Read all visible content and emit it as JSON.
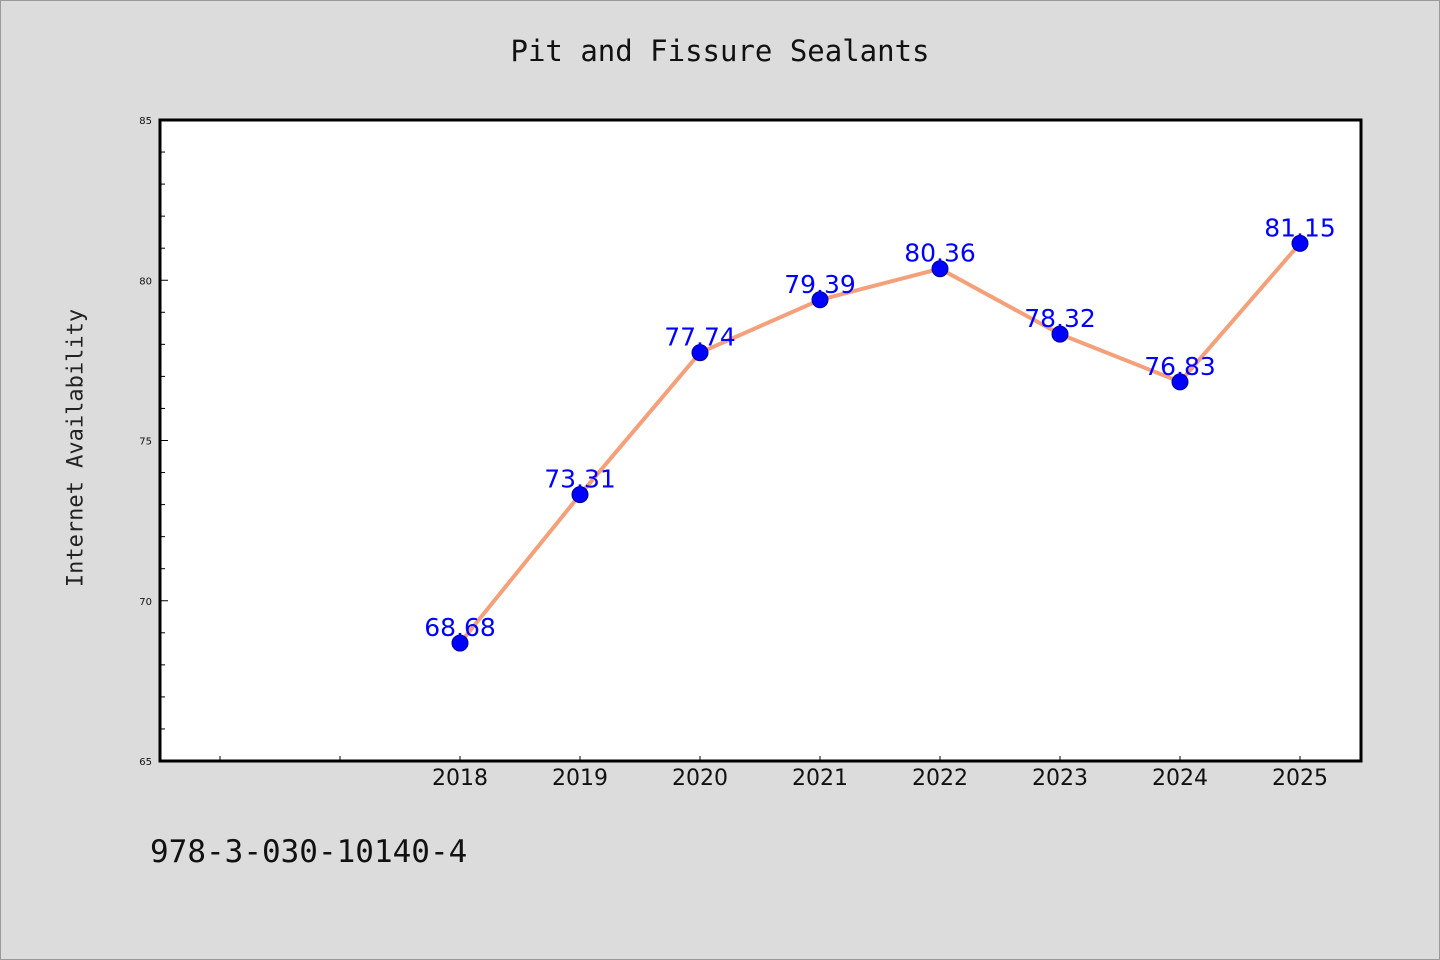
{
  "chart_data": {
    "type": "line",
    "title": "Pit and Fissure Sealants",
    "xlabel": "",
    "ylabel": "Internet Availability",
    "x": [
      "2018",
      "2019",
      "2020",
      "2021",
      "2022",
      "2023",
      "2024",
      "2025"
    ],
    "series": [
      {
        "values": [
          68.68,
          73.31,
          77.74,
          79.39,
          80.36,
          78.32,
          76.83,
          81.15
        ]
      }
    ],
    "data_labels": [
      "68.68",
      "73.31",
      "77.74",
      "79.39",
      "80.36",
      "78.32",
      "76.83",
      "81.15"
    ],
    "ylim": [
      65,
      85
    ],
    "yticks": [
      65,
      70,
      75,
      80,
      85
    ],
    "grid": false,
    "line_color": "#f4a07a",
    "marker_color": "#0000ff",
    "label_color": "#0000ff"
  },
  "footer": {
    "code": "978-3-030-10140-4"
  }
}
